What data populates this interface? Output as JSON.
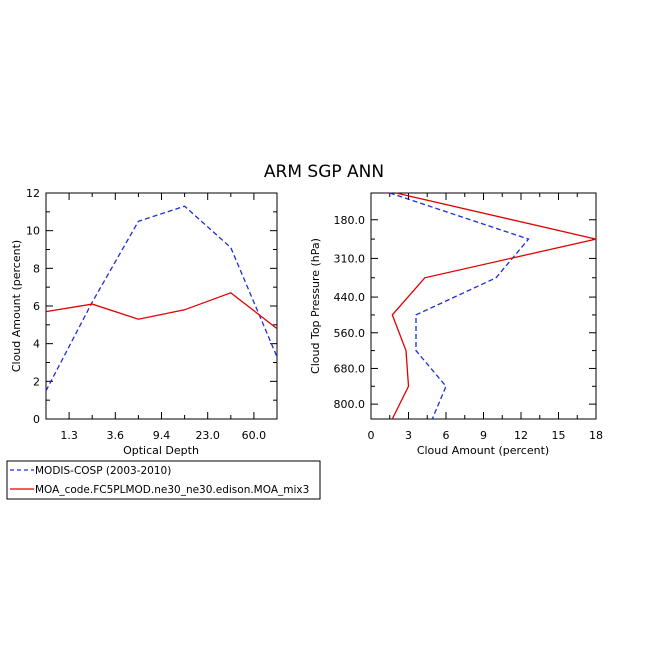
{
  "figure_title": "ARM SGP ANN",
  "colors": {
    "modis": "#1a2fd6",
    "moa": "#e00000",
    "axis": "#000000"
  },
  "chart_data": [
    {
      "type": "line",
      "xscale": "categorical",
      "xlabel": "Optical Depth",
      "ylabel": "Cloud Amount (percent)",
      "ylim": [
        0,
        12
      ],
      "yticks": [
        0,
        2,
        4,
        6,
        8,
        10,
        12
      ],
      "xtick_labels": [
        "1.3",
        "3.6",
        "9.4",
        "23.0",
        "60.0"
      ],
      "xlim_index": [
        0,
        5
      ],
      "x_positions": [
        0,
        1,
        2,
        3,
        4,
        5
      ],
      "series": [
        {
          "name": "MODIS-COSP (2003-2010)",
          "style": "dashed",
          "values": [
            1.5,
            6.2,
            10.5,
            11.3,
            9.1,
            3.3
          ]
        },
        {
          "name": "MOA_code.FC5PLMOD.ne30_ne30.edison.MOA_mix3",
          "style": "solid",
          "values": [
            5.7,
            6.1,
            5.3,
            5.8,
            6.7,
            4.8
          ]
        }
      ]
    },
    {
      "type": "line",
      "orientation": "vertical-profile",
      "xlabel": "Cloud Amount (percent)",
      "ylabel": "Cloud Top Pressure (hPa)",
      "xlim": [
        0,
        18
      ],
      "xticks": [
        0,
        3,
        6,
        9,
        12,
        15,
        18
      ],
      "ylim": [
        90,
        850
      ],
      "yticks": [
        180,
        310,
        440,
        560,
        680,
        800
      ],
      "ytick_labels": [
        "180.0",
        "310.0",
        "440.0",
        "560.0",
        "680.0",
        "800.0"
      ],
      "pressure_levels": [
        90,
        245,
        375,
        500,
        620,
        740,
        850
      ],
      "series": [
        {
          "name": "MODIS-COSP (2003-2010)",
          "style": "dashed",
          "values": [
            1.5,
            12.6,
            10.0,
            3.6,
            3.6,
            6.0,
            4.9
          ]
        },
        {
          "name": "MOA_code.FC5PLMOD.ne30_ne30.edison.MOA_mix3",
          "style": "solid",
          "values": [
            2.0,
            18.0,
            4.3,
            1.7,
            2.8,
            3.0,
            1.7
          ]
        }
      ]
    }
  ],
  "legend": [
    {
      "label": "MODIS-COSP (2003-2010)",
      "style": "dashed"
    },
    {
      "label": "MOA_code.FC5PLMOD.ne30_ne30.edison.MOA_mix3",
      "style": "solid"
    }
  ]
}
